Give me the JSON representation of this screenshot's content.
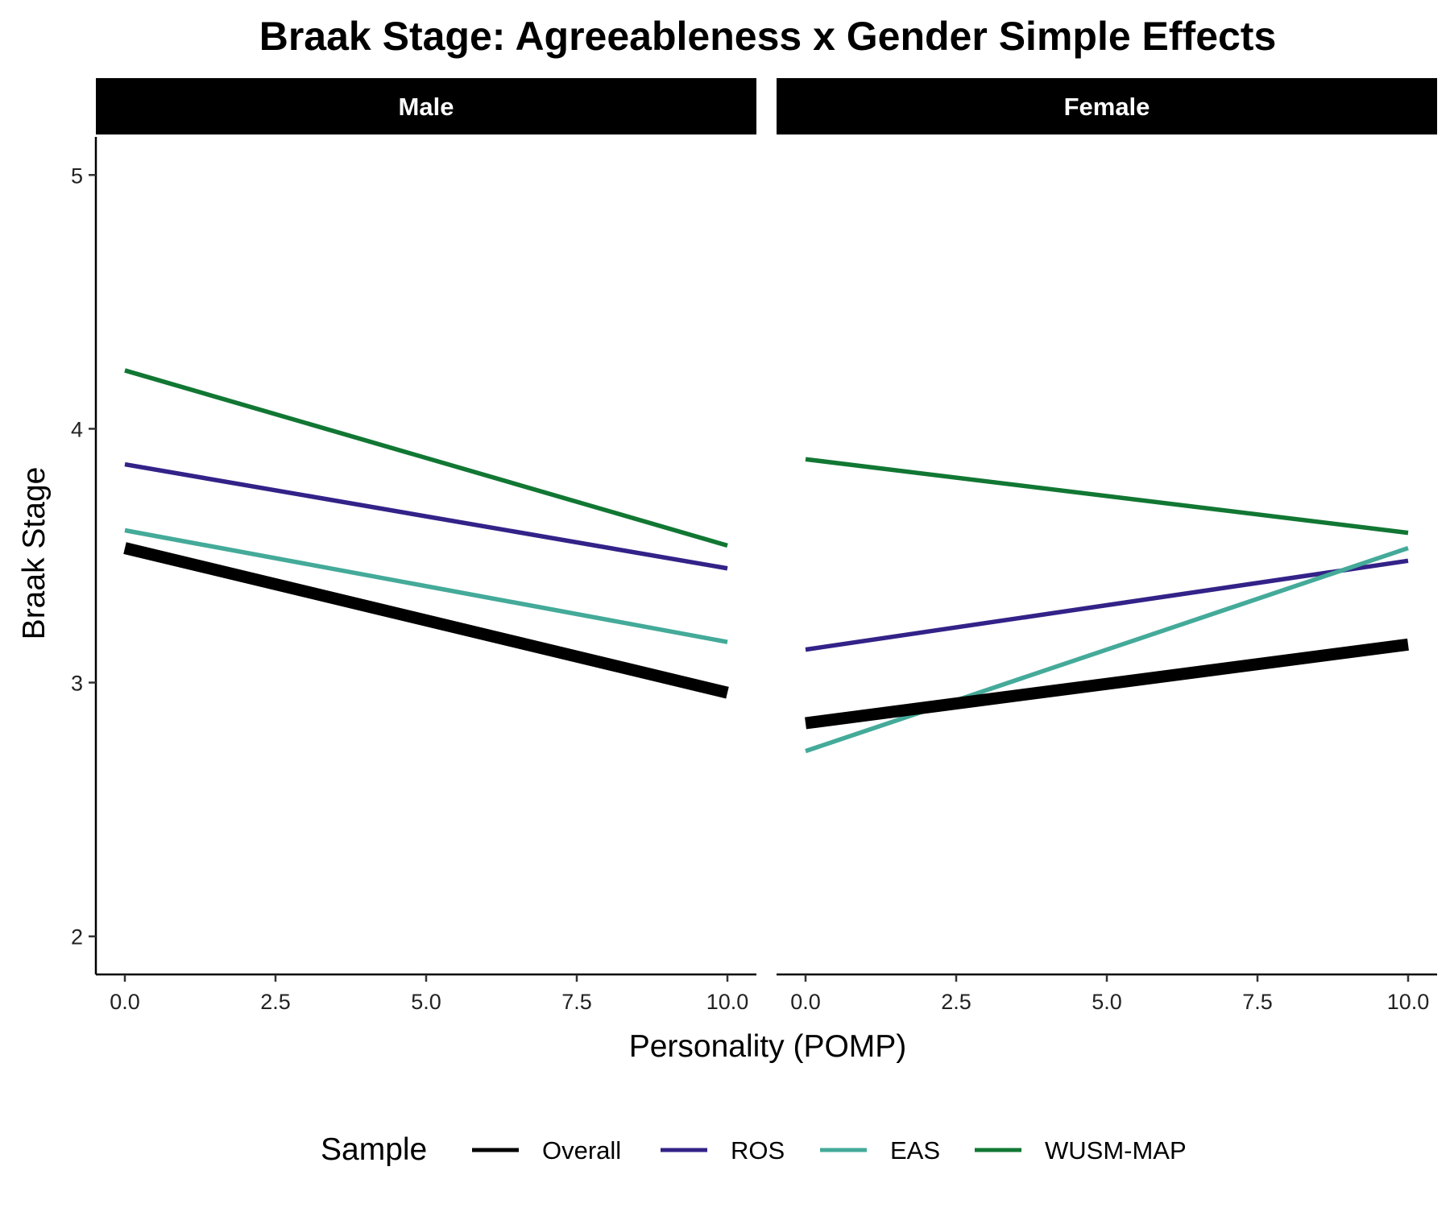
{
  "chart_data": {
    "type": "line",
    "title": "Braak Stage: Agreeableness x Gender Simple Effects",
    "xlabel": "Personality (POMP)",
    "ylabel": "Braak Stage",
    "xlim": [
      0,
      10
    ],
    "ylim": [
      1.85,
      5.15
    ],
    "x_ticks": [
      0,
      2.5,
      5,
      7.5,
      10
    ],
    "x_tick_labels": [
      "0.0",
      "2.5",
      "5.0",
      "7.5",
      "10.0"
    ],
    "y_ticks": [
      2,
      3,
      4,
      5
    ],
    "y_tick_labels": [
      "2",
      "3",
      "4",
      "5"
    ],
    "grid": false,
    "legend": {
      "title": "Sample",
      "position": "bottom"
    },
    "series_styles": [
      {
        "name": "Overall",
        "color": "#000000",
        "thick": true
      },
      {
        "name": "ROS",
        "color": "#332288",
        "thick": false
      },
      {
        "name": "EAS",
        "color": "#44AA99",
        "thick": false
      },
      {
        "name": "WUSM-MAP",
        "color": "#117733",
        "thick": false
      }
    ],
    "panels": [
      {
        "facet": "Male",
        "series": [
          {
            "name": "Overall",
            "x": [
              0,
              10
            ],
            "y": [
              3.53,
              2.96
            ]
          },
          {
            "name": "ROS",
            "x": [
              0,
              10
            ],
            "y": [
              3.86,
              3.45
            ]
          },
          {
            "name": "EAS",
            "x": [
              0,
              10
            ],
            "y": [
              3.6,
              3.16
            ]
          },
          {
            "name": "WUSM-MAP",
            "x": [
              0,
              10
            ],
            "y": [
              4.23,
              3.54
            ]
          }
        ]
      },
      {
        "facet": "Female",
        "series": [
          {
            "name": "Overall",
            "x": [
              0,
              10
            ],
            "y": [
              2.84,
              3.15
            ]
          },
          {
            "name": "ROS",
            "x": [
              0,
              10
            ],
            "y": [
              3.13,
              3.48
            ]
          },
          {
            "name": "EAS",
            "x": [
              0,
              10
            ],
            "y": [
              2.73,
              3.53
            ]
          },
          {
            "name": "WUSM-MAP",
            "x": [
              0,
              10
            ],
            "y": [
              3.88,
              3.59
            ]
          }
        ]
      }
    ]
  }
}
